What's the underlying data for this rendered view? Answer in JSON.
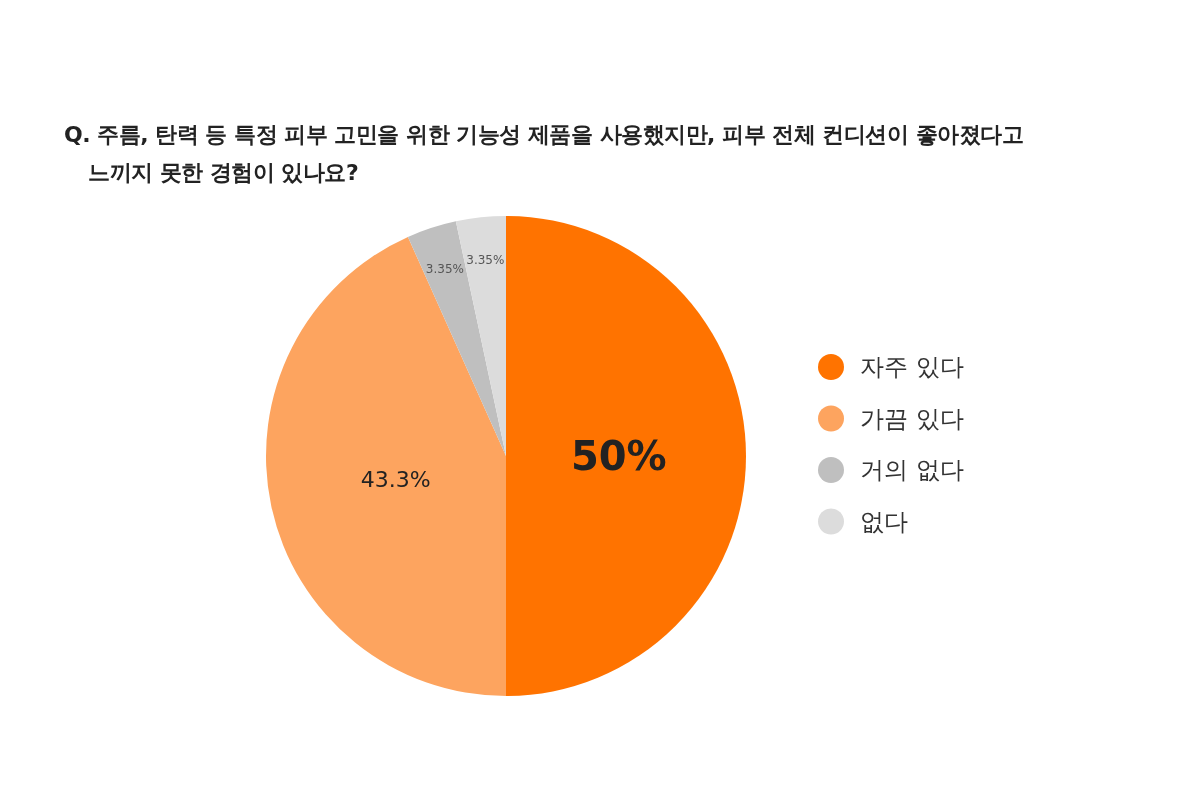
{
  "chart_data": {
    "type": "pie",
    "title": "Q. 주름, 탄력 등 특정 피부 고민을 위한 기능성 제품을 사용했지만, 피부 전체 컨디션이 좋아졌다고 느끼지 못한 경험이 있나요?",
    "categories": [
      "자주 있다",
      "가끔 있다",
      "거의 없다",
      "없다"
    ],
    "values": [
      50,
      43.3,
      3.35,
      3.35
    ],
    "value_labels": [
      "50%",
      "43.3%",
      "3.35%",
      "3.35%"
    ],
    "colors": [
      "#ff7300",
      "#fda45f",
      "#bfbfbf",
      "#dcdcdc"
    ],
    "legend": "right"
  }
}
